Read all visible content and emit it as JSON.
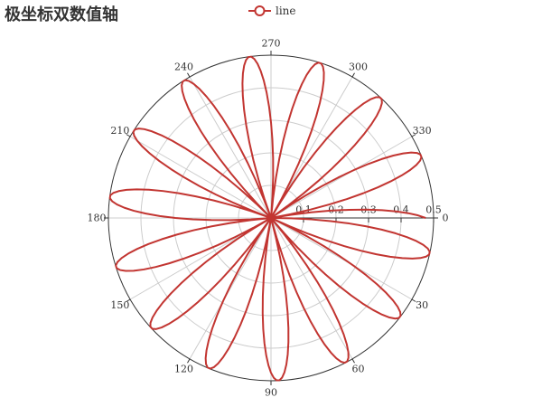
{
  "title": "极坐标双数值轴",
  "legend": [
    {
      "name": "line",
      "color": "#c23531"
    }
  ],
  "colors": {
    "series": "#c23531",
    "axis": "#333333",
    "split_line": "#cccccc"
  },
  "chart_data": {
    "type": "line",
    "coordinate_system": "polar",
    "title": "极坐标双数值轴",
    "angle_axis": {
      "min": 0,
      "max": 360,
      "interval": 30,
      "start_angle": 0,
      "clockwise": true,
      "tick_labels": [
        "0",
        "30",
        "60",
        "90",
        "120",
        "150",
        "180",
        "210",
        "240",
        "270",
        "300",
        "330"
      ]
    },
    "radius_axis": {
      "min": 0,
      "max": 0.5,
      "interval": 0.1,
      "tick_labels": [
        "0.1",
        "0.2",
        "0.3",
        "0.4",
        "0.5"
      ]
    },
    "grid": true,
    "legend_position": "top-center",
    "series": [
      {
        "name": "line",
        "formula": "r = |sin(2π·i/100)·cos(2π·i/100)|, angle = i degrees",
        "i_range": [
          0,
          360
        ],
        "r_max": 0.5
      }
    ]
  }
}
